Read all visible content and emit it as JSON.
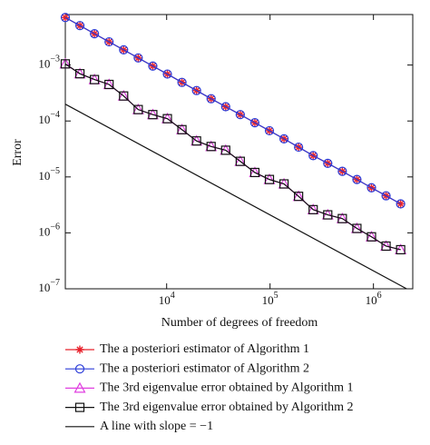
{
  "chart_data": {
    "type": "line",
    "log_x": true,
    "log_y": true,
    "xlabel": "Number of degrees of freedom",
    "ylabel": "Error",
    "xlim": [
      1047,
      2400000
    ],
    "ylim": [
      1e-07,
      0.008
    ],
    "xticks": [
      {
        "value": 10000,
        "label": "10^4"
      },
      {
        "value": 100000,
        "label": "10^5"
      },
      {
        "value": 1000000,
        "label": "10^6"
      }
    ],
    "yticks": [
      {
        "value": 1e-07,
        "label": "10^-7"
      },
      {
        "value": 1e-06,
        "label": "10^-6"
      },
      {
        "value": 1e-05,
        "label": "10^-5"
      },
      {
        "value": 0.0001,
        "label": "10^-4"
      },
      {
        "value": 0.001,
        "label": "10^-3"
      }
    ],
    "x": [
      1047,
      1449,
      2004,
      2773,
      3837,
      5309,
      7345,
      10162,
      14060,
      19454,
      26915,
      37239,
      51523,
      71285,
      98628,
      136458,
      188799,
      261216,
      361410,
      500035,
      691831,
      957194,
      1324342,
      1832314
    ],
    "series": [
      {
        "name": "The a posteriori estimator of Algorithm 1",
        "color": "#e8202a",
        "marker": "asterisk",
        "values": [
          0.00708,
          0.00507,
          0.00363,
          0.0026,
          0.00187,
          0.00134,
          0.00096,
          0.00069,
          0.00049,
          0.00035,
          0.00025,
          0.00018,
          0.00013,
          9.3e-05,
          6.7e-05,
          4.8e-05,
          3.4e-05,
          2.4e-05,
          1.75e-05,
          1.26e-05,
          9e-06,
          6.4e-06,
          4.6e-06,
          3.3e-06
        ]
      },
      {
        "name": "The a posteriori estimator of Algorithm 2",
        "color": "#2b3cd8",
        "marker": "circle",
        "values": [
          0.00708,
          0.00507,
          0.00363,
          0.0026,
          0.00187,
          0.00134,
          0.00096,
          0.00069,
          0.00049,
          0.00035,
          0.00025,
          0.00018,
          0.00013,
          9.3e-05,
          6.7e-05,
          4.8e-05,
          3.4e-05,
          2.4e-05,
          1.75e-05,
          1.26e-05,
          9e-06,
          6.4e-06,
          4.6e-06,
          3.3e-06
        ]
      },
      {
        "name": "The 3rd eigenvalue error obtained by Algorithm 1",
        "color": "#e040e0",
        "marker": "triangle",
        "values": [
          0.00105,
          0.0007,
          0.00055,
          0.00045,
          0.00028,
          0.00016,
          0.00013,
          0.00011,
          7e-05,
          4.4e-05,
          3.5e-05,
          3e-05,
          1.9e-05,
          1.2e-05,
          9e-06,
          7.5e-06,
          4.5e-06,
          2.6e-06,
          2.1e-06,
          1.8e-06,
          1.2e-06,
          8.5e-07,
          5.8e-07,
          5e-07
        ]
      },
      {
        "name": "The 3rd eigenvalue error obtained by Algorithm 2",
        "color": "#111111",
        "marker": "square",
        "values": [
          0.00105,
          0.0007,
          0.00055,
          0.00045,
          0.00028,
          0.00016,
          0.00013,
          0.00011,
          7e-05,
          4.4e-05,
          3.5e-05,
          3e-05,
          1.9e-05,
          1.2e-05,
          9e-06,
          7.5e-06,
          4.5e-06,
          2.6e-06,
          2.1e-06,
          1.8e-06,
          1.2e-06,
          8.5e-07,
          5.8e-07,
          5e-07
        ]
      }
    ],
    "reference_line": {
      "name": "A line with slope = −1",
      "color": "#111111",
      "x": [
        1047,
        2094000
      ],
      "values": [
        0.0002,
        1e-07
      ]
    }
  }
}
